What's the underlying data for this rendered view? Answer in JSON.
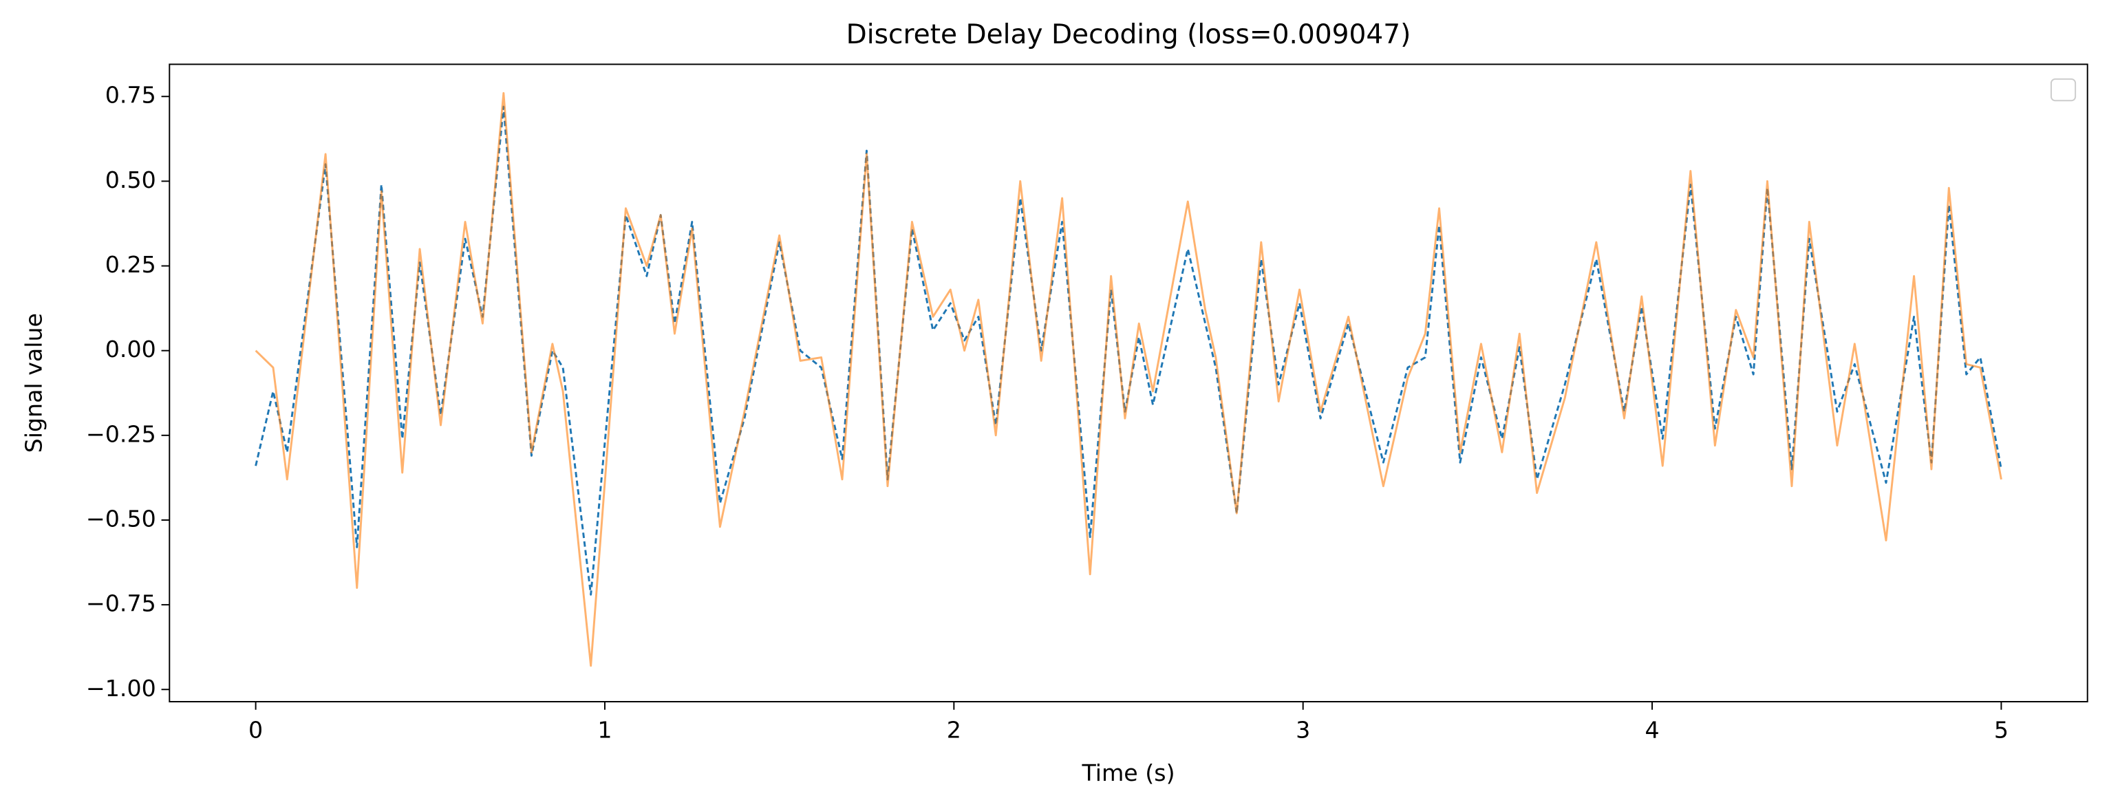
{
  "chart_data": {
    "type": "line",
    "title": "Discrete Delay Decoding (loss=0.009047)",
    "xlabel": "Time (s)",
    "ylabel": "Signal value",
    "x": [
      0,
      0.05,
      0.09,
      0.2,
      0.29,
      0.36,
      0.42,
      0.47,
      0.53,
      0.6,
      0.65,
      0.71,
      0.79,
      0.85,
      0.88,
      0.96,
      1.06,
      1.12,
      1.16,
      1.2,
      1.25,
      1.33,
      1.4,
      1.5,
      1.56,
      1.62,
      1.68,
      1.75,
      1.81,
      1.88,
      1.94,
      1.99,
      2.03,
      2.07,
      2.12,
      2.19,
      2.25,
      2.31,
      2.39,
      2.45,
      2.49,
      2.53,
      2.57,
      2.67,
      2.72,
      2.75,
      2.81,
      2.88,
      2.93,
      2.99,
      3.05,
      3.13,
      3.23,
      3.3,
      3.35,
      3.39,
      3.45,
      3.51,
      3.57,
      3.62,
      3.67,
      3.75,
      3.84,
      3.92,
      3.97,
      4.03,
      4.11,
      4.18,
      4.24,
      4.29,
      4.33,
      4.4,
      4.45,
      4.53,
      4.58,
      4.67,
      4.75,
      4.8,
      4.85,
      4.9,
      4.94,
      5
    ],
    "series": [
      {
        "color": "#1f77b4",
        "dash": true,
        "values": [
          -0.34,
          -0.12,
          -0.3,
          0.55,
          -0.58,
          0.49,
          -0.26,
          0.26,
          -0.19,
          0.33,
          0.1,
          0.72,
          -0.31,
          0.0,
          -0.05,
          -0.72,
          0.4,
          0.22,
          0.4,
          0.08,
          0.38,
          -0.45,
          -0.2,
          0.32,
          0.0,
          -0.05,
          -0.32,
          0.59,
          -0.38,
          0.36,
          0.06,
          0.14,
          0.03,
          0.1,
          -0.22,
          0.45,
          0.0,
          0.38,
          -0.55,
          0.18,
          -0.18,
          0.04,
          -0.16,
          0.3,
          0.08,
          -0.05,
          -0.48,
          0.27,
          -0.1,
          0.14,
          -0.2,
          0.08,
          -0.33,
          -0.05,
          -0.02,
          0.37,
          -0.33,
          -0.02,
          -0.26,
          0.01,
          -0.38,
          -0.1,
          0.27,
          -0.18,
          0.13,
          -0.26,
          0.49,
          -0.23,
          0.1,
          -0.07,
          0.48,
          -0.35,
          0.33,
          -0.18,
          -0.04,
          -0.39,
          0.1,
          -0.33,
          0.43,
          -0.07,
          -0.02,
          -0.35
        ]
      },
      {
        "color": "#ff7f0e",
        "dash": false,
        "values": [
          0.0,
          -0.05,
          -0.38,
          0.58,
          -0.7,
          0.47,
          -0.36,
          0.3,
          -0.22,
          0.38,
          0.08,
          0.76,
          -0.3,
          0.02,
          -0.12,
          -0.93,
          0.42,
          0.25,
          0.4,
          0.05,
          0.36,
          -0.52,
          -0.18,
          0.34,
          -0.03,
          -0.02,
          -0.38,
          0.58,
          -0.4,
          0.38,
          0.1,
          0.18,
          0.0,
          0.15,
          -0.25,
          0.5,
          -0.03,
          0.45,
          -0.66,
          0.22,
          -0.2,
          0.08,
          -0.12,
          0.44,
          0.12,
          -0.02,
          -0.48,
          0.32,
          -0.15,
          0.18,
          -0.18,
          0.1,
          -0.4,
          -0.08,
          0.05,
          0.42,
          -0.3,
          0.02,
          -0.3,
          0.05,
          -0.42,
          -0.14,
          0.32,
          -0.2,
          0.16,
          -0.34,
          0.53,
          -0.28,
          0.12,
          -0.02,
          0.5,
          -0.4,
          0.38,
          -0.28,
          0.02,
          -0.56,
          0.22,
          -0.35,
          0.48,
          -0.04,
          -0.05,
          -0.38
        ]
      }
    ],
    "xlim": [
      -0.247,
      5.247
    ],
    "xticks": [
      0,
      1,
      2,
      3,
      4,
      5
    ],
    "ylim": [
      -1.036,
      0.845
    ],
    "yticks": [
      {
        "value": -1,
        "label": "−1.00"
      },
      {
        "value": -0.75,
        "label": "−0.75"
      },
      {
        "value": -0.5,
        "label": "−0.50"
      },
      {
        "value": -0.25,
        "label": "−0.25"
      },
      {
        "value": 0,
        "label": "0.00"
      },
      {
        "value": 0.25,
        "label": "0.25"
      },
      {
        "value": 0.5,
        "label": "0.50"
      },
      {
        "value": 0.75,
        "label": "0.75"
      }
    ],
    "grid": false
  }
}
